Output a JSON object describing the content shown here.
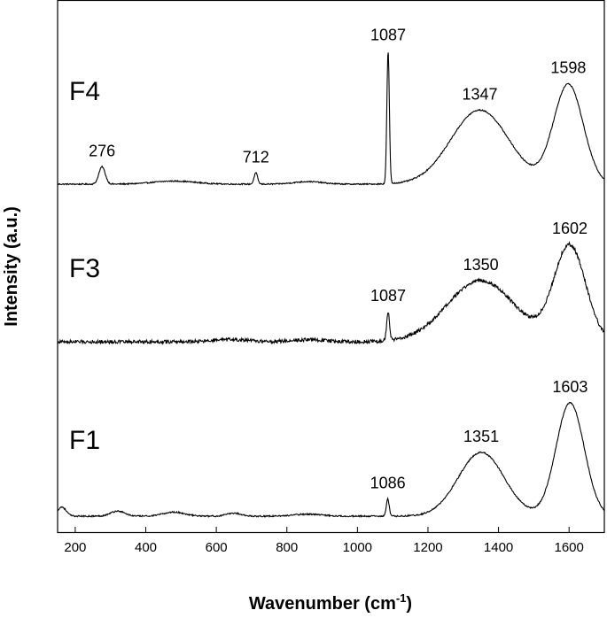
{
  "chart_data": {
    "type": "line",
    "xlabel": "Wavenumber (cm",
    "xlabel_sup": "-1",
    "xlabel_close": ")",
    "ylabel": "Intensity (a.u.)",
    "xlim": [
      150,
      1700
    ],
    "xticks": [
      200,
      400,
      600,
      800,
      1000,
      1200,
      1400,
      1600
    ],
    "yaxis_ticks": "none",
    "grid": false,
    "legend": "none",
    "line_color": "#000000",
    "series": [
      {
        "name": "F4",
        "baseline": 0.0,
        "bands": [
          [
            276,
            0.34,
            9
          ],
          [
            712,
            0.22,
            5
          ],
          [
            1087,
            2.6,
            3.5
          ],
          [
            1347,
            1.45,
            82
          ],
          [
            1598,
            1.95,
            42
          ],
          [
            480,
            0.06,
            60
          ],
          [
            860,
            0.05,
            40
          ]
        ],
        "noise": 0.012,
        "peaks": [
          {
            "label": "276",
            "x": 276
          },
          {
            "label": "712",
            "x": 712
          },
          {
            "label": "1087",
            "x": 1087
          },
          {
            "label": "1347",
            "x": 1347
          },
          {
            "label": "1598",
            "x": 1598
          }
        ]
      },
      {
        "name": "F3",
        "baseline": 0.0,
        "bands": [
          [
            1087,
            0.56,
            4
          ],
          [
            1350,
            1.2,
            95
          ],
          [
            1602,
            1.87,
            45
          ],
          [
            640,
            0.04,
            50
          ],
          [
            860,
            0.04,
            50
          ]
        ],
        "noise": 0.035,
        "peaks": [
          {
            "label": "1087",
            "x": 1087
          },
          {
            "label": "1350",
            "x": 1350
          },
          {
            "label": "1602",
            "x": 1602
          }
        ]
      },
      {
        "name": "F1",
        "baseline": 0.0,
        "bands": [
          [
            1086,
            0.34,
            4
          ],
          [
            1351,
            1.25,
            65
          ],
          [
            1603,
            2.22,
            40
          ],
          [
            162,
            0.18,
            12
          ],
          [
            320,
            0.1,
            20
          ],
          [
            480,
            0.08,
            30
          ],
          [
            650,
            0.06,
            20
          ],
          [
            860,
            0.04,
            40
          ]
        ],
        "noise": 0.014,
        "peaks": [
          {
            "label": "1086",
            "x": 1086
          },
          {
            "label": "1351",
            "x": 1351
          },
          {
            "label": "1603",
            "x": 1603
          }
        ]
      }
    ]
  }
}
